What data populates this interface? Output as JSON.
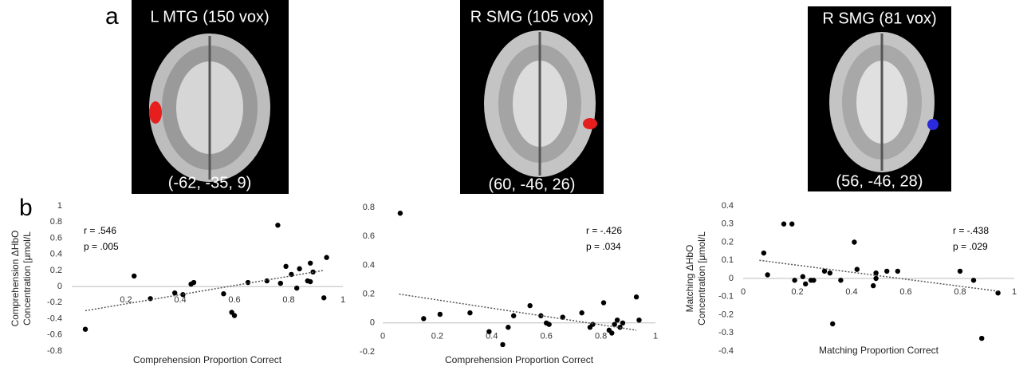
{
  "figure": {
    "panel_labels": [
      "a",
      "b"
    ],
    "images": [
      {
        "title": "L MTG (150 vox)",
        "coords": "(-62, -35, 9)"
      },
      {
        "title": "R SMG (105 vox)",
        "coords": "(60, -46, 26)"
      },
      {
        "title": "R SMG (81 vox)",
        "coords": "(56, -46, 28)"
      }
    ]
  },
  "chart_data": [
    {
      "type": "scatter",
      "xlabel": "Comprehension Proportion Correct",
      "ylabel": [
        "Comprehension ΔHbO",
        "Concentration [μmol/L"
      ],
      "annotations": [
        "r = .546",
        "p = .005"
      ],
      "color": "#000000",
      "x": [
        0.05,
        0.23,
        0.29,
        0.38,
        0.41,
        0.44,
        0.45,
        0.56,
        0.59,
        0.6,
        0.65,
        0.72,
        0.76,
        0.77,
        0.79,
        0.81,
        0.83,
        0.84,
        0.87,
        0.88,
        0.89,
        0.88,
        0.93,
        0.94
      ],
      "values": [
        -0.53,
        0.13,
        -0.15,
        -0.08,
        -0.1,
        0.03,
        0.05,
        -0.09,
        -0.32,
        -0.36,
        0.05,
        0.07,
        0.76,
        0.04,
        0.25,
        0.15,
        -0.02,
        0.22,
        0.07,
        0.29,
        0.18,
        0.06,
        -0.14,
        0.36
      ],
      "trend": {
        "x": [
          0.05,
          0.93
        ],
        "values": [
          -0.3,
          0.2
        ]
      },
      "xlim": [
        0,
        1
      ],
      "xticks": [
        0.2,
        0.4,
        0.6,
        0.8,
        1
      ],
      "ylim": [
        -0.8,
        1
      ],
      "yticks": [
        -0.8,
        -0.6,
        -0.4,
        -0.2,
        0,
        0.2,
        0.4,
        0.6,
        0.8,
        1
      ]
    },
    {
      "type": "scatter",
      "xlabel": "Comprehension Proportion Correct",
      "annotations": [
        "r = -.426",
        "p = .034"
      ],
      "color": "#000000",
      "x": [
        0.064,
        0.15,
        0.21,
        0.32,
        0.39,
        0.44,
        0.46,
        0.48,
        0.54,
        0.58,
        0.6,
        0.61,
        0.66,
        0.73,
        0.76,
        0.77,
        0.81,
        0.83,
        0.84,
        0.85,
        0.86,
        0.87,
        0.88,
        0.93,
        0.94
      ],
      "values": [
        0.76,
        0.03,
        0.06,
        0.07,
        -0.06,
        -0.15,
        -0.03,
        0.05,
        0.12,
        0.05,
        0.0,
        -0.01,
        0.04,
        0.07,
        -0.03,
        -0.01,
        0.14,
        -0.05,
        -0.07,
        -0.01,
        0.02,
        -0.03,
        0.0,
        0.18,
        0.02
      ],
      "trend": {
        "x": [
          0.06,
          0.93
        ],
        "values": [
          0.2,
          -0.05
        ]
      },
      "xlim": [
        0,
        1
      ],
      "xticks": [
        0,
        0.2,
        0.4,
        0.6,
        0.8,
        1
      ],
      "ylim": [
        -0.2,
        0.8
      ],
      "yticks": [
        -0.2,
        0,
        0.2,
        0.4,
        0.6,
        0.8
      ]
    },
    {
      "type": "scatter",
      "xlabel": "Matching Proportion Correct",
      "ylabel": [
        "Matching  ΔHbO",
        "Concentration [μmol/L"
      ],
      "annotations": [
        "r = -.438",
        "p = .029"
      ],
      "color": "#000000",
      "x": [
        0.076,
        0.09,
        0.15,
        0.18,
        0.19,
        0.22,
        0.23,
        0.25,
        0.26,
        0.3,
        0.32,
        0.33,
        0.36,
        0.41,
        0.42,
        0.48,
        0.49,
        0.49,
        0.53,
        0.57,
        0.8,
        0.85,
        0.88,
        0.94
      ],
      "values": [
        0.14,
        0.02,
        0.3,
        0.3,
        -0.01,
        0.01,
        -0.03,
        -0.01,
        -0.01,
        0.04,
        0.03,
        -0.25,
        -0.01,
        0.2,
        0.05,
        -0.04,
        0.03,
        0.0,
        0.04,
        0.04,
        0.04,
        -0.01,
        -0.33,
        -0.08
      ],
      "trend": {
        "x": [
          0.06,
          0.94
        ],
        "values": [
          0.1,
          -0.07
        ]
      },
      "xlim": [
        0,
        1
      ],
      "xticks": [
        0,
        0.2,
        0.4,
        0.6,
        0.8,
        1
      ],
      "ylim": [
        -0.4,
        0.4
      ],
      "yticks": [
        -0.4,
        -0.3,
        -0.2,
        -0.1,
        0,
        0.1,
        0.2,
        0.3,
        0.4
      ]
    }
  ]
}
